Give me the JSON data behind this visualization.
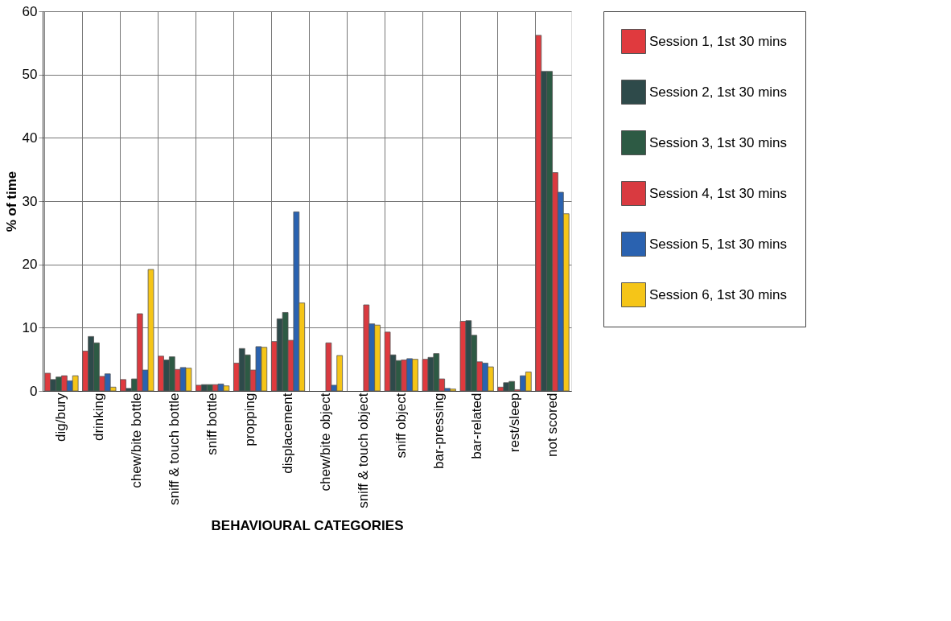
{
  "chart_data": {
    "type": "bar",
    "xlabel": "BEHAVIOURAL CATEGORIES",
    "ylabel": "% of time",
    "categories": [
      "dig/bury",
      "drinking",
      "chew/bite bottle",
      "sniff & touch bottle",
      "sniff bottle",
      "propping",
      "displacement",
      "chew/bite object",
      "sniff & touch object",
      "sniff object",
      "bar-pressing",
      "bar-related",
      "rest/sleep",
      "not scored"
    ],
    "series": [
      {
        "name": "Session 1, 1st 30 mins",
        "color": "#e03a3e",
        "values": [
          2.8,
          6.3,
          1.8,
          5.5,
          0.9,
          4.4,
          7.8,
          null,
          null,
          9.3,
          5.0,
          11.0,
          0.6,
          56.2
        ]
      },
      {
        "name": "Session 2, 1st 30 mins",
        "color": "#2e4a4a",
        "values": [
          1.8,
          8.6,
          0.4,
          4.9,
          1.0,
          6.7,
          11.4,
          null,
          null,
          5.7,
          5.3,
          11.1,
          1.3,
          50.5
        ]
      },
      {
        "name": "Session 3, 1st 30 mins",
        "color": "#2d5a44",
        "values": [
          2.2,
          7.6,
          1.9,
          5.4,
          1.0,
          5.7,
          12.4,
          null,
          null,
          4.8,
          5.9,
          8.8,
          1.5,
          50.5
        ]
      },
      {
        "name": "Session 4, 1st 30 mins",
        "color": "#d93a40",
        "values": [
          2.4,
          2.3,
          12.2,
          3.4,
          1.0,
          3.3,
          8.0,
          7.6,
          13.6,
          4.9,
          1.9,
          4.6,
          0.2,
          34.5
        ]
      },
      {
        "name": "Session 5, 1st 30 mins",
        "color": "#2a62b0",
        "values": [
          1.6,
          2.7,
          3.3,
          3.7,
          1.1,
          7.0,
          28.3,
          0.9,
          10.6,
          5.1,
          0.4,
          4.4,
          2.4,
          31.4
        ]
      },
      {
        "name": "Session 6, 1st 30 mins",
        "color": "#f5c518",
        "values": [
          2.4,
          0.6,
          19.2,
          3.6,
          0.8,
          6.9,
          13.9,
          5.6,
          10.4,
          5.0,
          0.3,
          3.8,
          3.0,
          28.0
        ]
      }
    ],
    "ylim": [
      0,
      60
    ],
    "yticks": [
      0,
      10,
      20,
      30,
      40,
      50,
      60
    ],
    "grid": true,
    "legend": "top right"
  }
}
